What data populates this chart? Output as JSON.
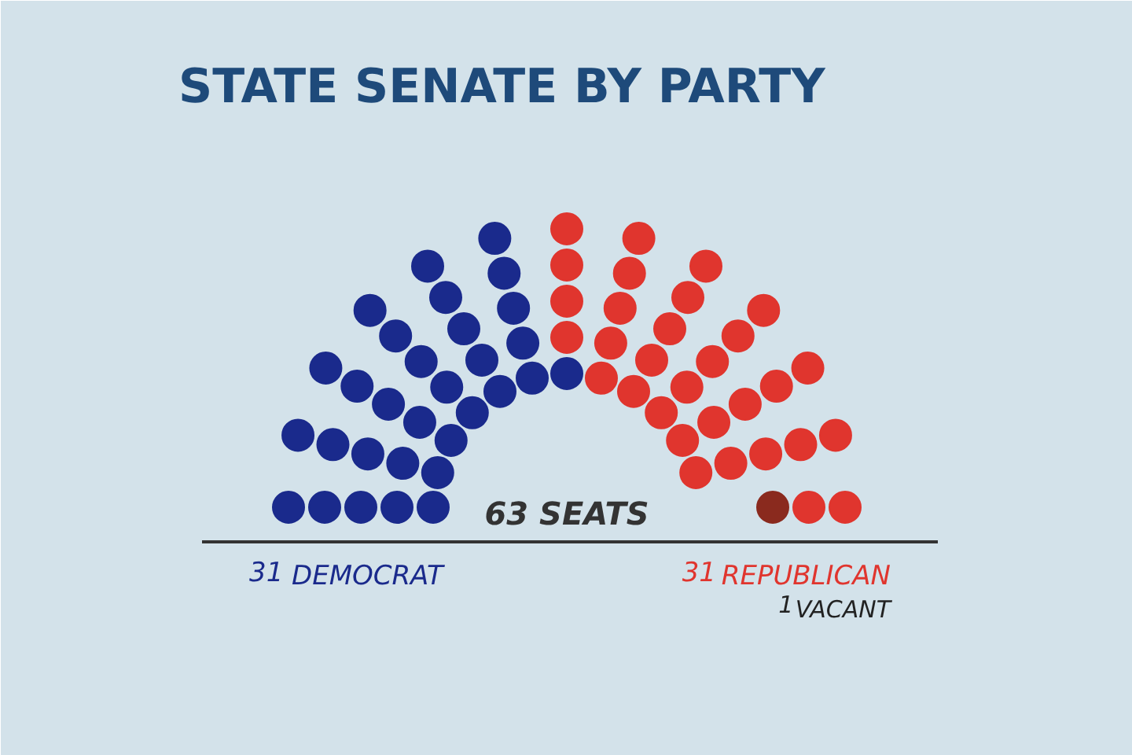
{
  "chart_data": {
    "type": "other",
    "title": "STATE SENATE BY PARTY",
    "categories": [
      "DEMOCRAT",
      "REPUBLICAN",
      "VACANT"
    ],
    "values": [
      31,
      31,
      1
    ],
    "colors": [
      "#1a2a8c",
      "#e0352e",
      "#8a2a1e"
    ],
    "data_labels": true,
    "annotations": [
      "63 SEATS"
    ]
  }
}
